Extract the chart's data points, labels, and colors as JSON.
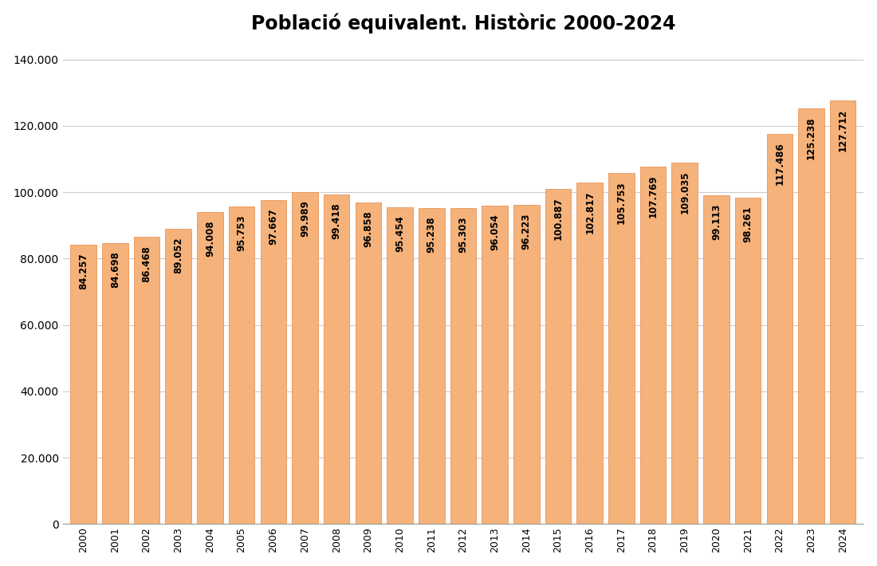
{
  "title": "Població equivalent. Històric 2000-2024",
  "categories": [
    "2000",
    "2001",
    "2002",
    "2003",
    "2004",
    "2005",
    "2006",
    "2007",
    "2008",
    "2009",
    "2010",
    "2011",
    "2012",
    "2013",
    "2014",
    "2015",
    "2016",
    "2017",
    "2018",
    "2019",
    "2020",
    "2021",
    "2022",
    "2023",
    "2024"
  ],
  "values": [
    84257,
    84698,
    86468,
    89052,
    94008,
    95753,
    97667,
    99989,
    99418,
    96858,
    95454,
    95238,
    95303,
    96054,
    96223,
    100887,
    102817,
    105753,
    107769,
    109035,
    99113,
    98261,
    117486,
    125238,
    127712
  ],
  "bar_color": "#F5B27A",
  "bar_edgecolor": "#E8955A",
  "label_values": [
    "84.257",
    "84.698",
    "86.468",
    "89.052",
    "94.008",
    "95.753",
    "97.667",
    "99.989",
    "99.418",
    "96.858",
    "95.454",
    "95.238",
    "95.303",
    "96.054",
    "96.223",
    "100.887",
    "102.817",
    "105.753",
    "107.769",
    "109.035",
    "99.113",
    "98.261",
    "117.486",
    "125.238",
    "127.712"
  ],
  "yticks": [
    0,
    20000,
    40000,
    60000,
    80000,
    100000,
    120000,
    140000
  ],
  "ytick_labels": [
    "0",
    "20.000",
    "40.000",
    "60.000",
    "80.000",
    "100.000",
    "120.000",
    "140.000"
  ],
  "ylim": [
    0,
    145000
  ],
  "background_color": "#ffffff",
  "title_fontsize": 17,
  "label_fontsize": 8.5,
  "bar_width": 0.82
}
